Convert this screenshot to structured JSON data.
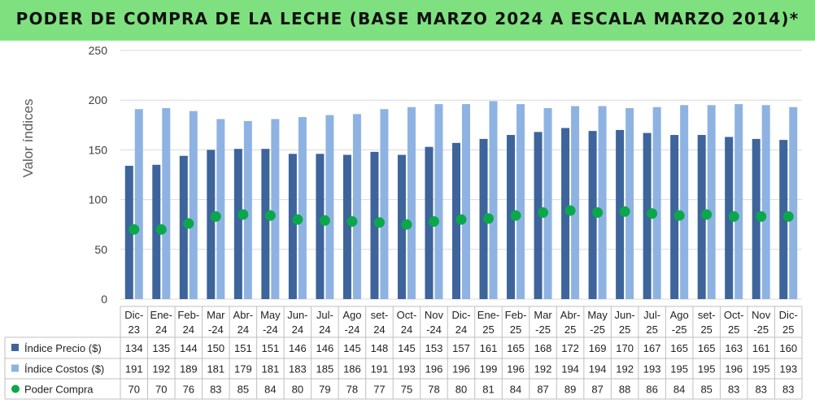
{
  "title": "PODER DE COMPRA DE LA LECHE (BASE MARZO 2024 A ESCALA MARZO 2014)*",
  "chart_data": {
    "type": "bar",
    "title": "PODER DE COMPRA DE LA LECHE (BASE MARZO 2024 A ESCALA MARZO 2014)*",
    "ylabel": "Valor índices",
    "xlabel": "",
    "ylim": [
      0,
      250
    ],
    "yticks": [
      0,
      50,
      100,
      150,
      200,
      250
    ],
    "grid": true,
    "legend": "bottom-table",
    "categories": [
      [
        "Dic-",
        "23"
      ],
      [
        "Ene-",
        "24"
      ],
      [
        "Feb-",
        "24"
      ],
      [
        "Mar",
        "-24"
      ],
      [
        "Abr-",
        "24"
      ],
      [
        "May",
        "-24"
      ],
      [
        "Jun-",
        "24"
      ],
      [
        "Jul-",
        "24"
      ],
      [
        "Ago",
        "-24"
      ],
      [
        "set-",
        "24"
      ],
      [
        "Oct-",
        "24"
      ],
      [
        "Nov",
        "-24"
      ],
      [
        "Dic-",
        "24"
      ],
      [
        "Ene-",
        "25"
      ],
      [
        "Feb-",
        "25"
      ],
      [
        "Mar",
        "-25"
      ],
      [
        "Abr-",
        "25"
      ],
      [
        "May",
        "-25"
      ],
      [
        "Jun-",
        "25"
      ],
      [
        "Jul-",
        "25"
      ],
      [
        "Ago",
        "-25"
      ],
      [
        "set-",
        "25"
      ],
      [
        "Oct-",
        "25"
      ],
      [
        "Nov",
        "-25"
      ],
      [
        "Dic-",
        "25"
      ]
    ],
    "series": [
      {
        "name": "Índice Precio ($)",
        "type": "bar",
        "color": "#3d649b",
        "values": [
          134,
          135,
          144,
          150,
          151,
          151,
          146,
          146,
          145,
          148,
          145,
          153,
          157,
          161,
          165,
          168,
          172,
          169,
          170,
          167,
          165,
          165,
          163,
          161,
          160
        ]
      },
      {
        "name": "Índice Costos ($)",
        "type": "bar",
        "color": "#8eb3e2",
        "values": [
          191,
          192,
          189,
          181,
          179,
          181,
          183,
          185,
          186,
          191,
          193,
          196,
          196,
          199,
          196,
          192,
          194,
          194,
          192,
          193,
          195,
          195,
          196,
          195,
          193
        ]
      },
      {
        "name": "Poder Compra",
        "type": "scatter",
        "color": "#0aa84a",
        "values": [
          70,
          70,
          76,
          83,
          85,
          84,
          80,
          79,
          78,
          77,
          75,
          78,
          80,
          81,
          84,
          87,
          89,
          87,
          88,
          86,
          84,
          85,
          83,
          83,
          83
        ]
      }
    ]
  }
}
